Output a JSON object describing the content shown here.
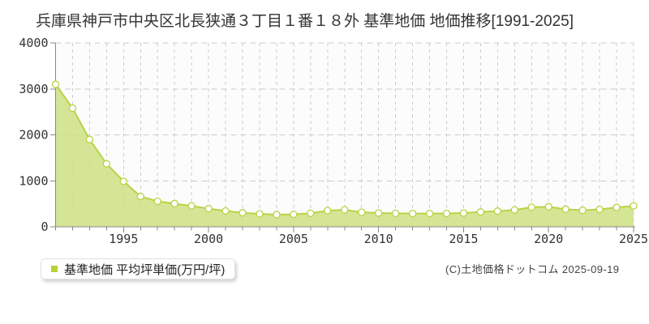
{
  "title": "兵庫県神戸市中央区北長狭通３丁目１番１８外 基準地価 地価推移[1991-2025]",
  "legend": {
    "label": "基準地価 平均坪単価(万円/坪)",
    "marker_color": "#b5d333"
  },
  "copyright": "(C)土地価格ドットコム 2025-09-19",
  "chart_data": {
    "type": "area",
    "title": "兵庫県神戸市中央区北長狭通３丁目１番１８外 基準地価 地価推移[1991-2025]",
    "ylabel": "平均坪単価(万円/坪)",
    "x": [
      1991,
      1992,
      1993,
      1994,
      1995,
      1996,
      1997,
      1998,
      1999,
      2000,
      2001,
      2002,
      2003,
      2004,
      2005,
      2006,
      2007,
      2008,
      2009,
      2010,
      2011,
      2012,
      2013,
      2014,
      2015,
      2016,
      2017,
      2018,
      2019,
      2020,
      2021,
      2022,
      2023,
      2024,
      2025
    ],
    "values": [
      3100,
      2580,
      1900,
      1370,
      990,
      660,
      555,
      505,
      455,
      395,
      345,
      305,
      282,
      265,
      270,
      295,
      352,
      370,
      315,
      300,
      293,
      289,
      289,
      291,
      300,
      323,
      340,
      368,
      425,
      435,
      382,
      360,
      378,
      420,
      455
    ],
    "ylim": [
      0,
      4000
    ],
    "yticks": [
      0,
      1000,
      2000,
      3000,
      4000
    ],
    "xtick_labels": [
      1995,
      2000,
      2005,
      2010,
      2015,
      2020,
      2025
    ],
    "grid": true,
    "legend_position": "bottom-left",
    "colors": {
      "plot_bg": "#fcfcfc",
      "grid": "#cccccc",
      "axis": "#888888",
      "area_fill": "rgba(206,227,134,0.88)",
      "line": "#b8d345",
      "marker_fill": "#ffffff",
      "label": "#333333"
    }
  }
}
